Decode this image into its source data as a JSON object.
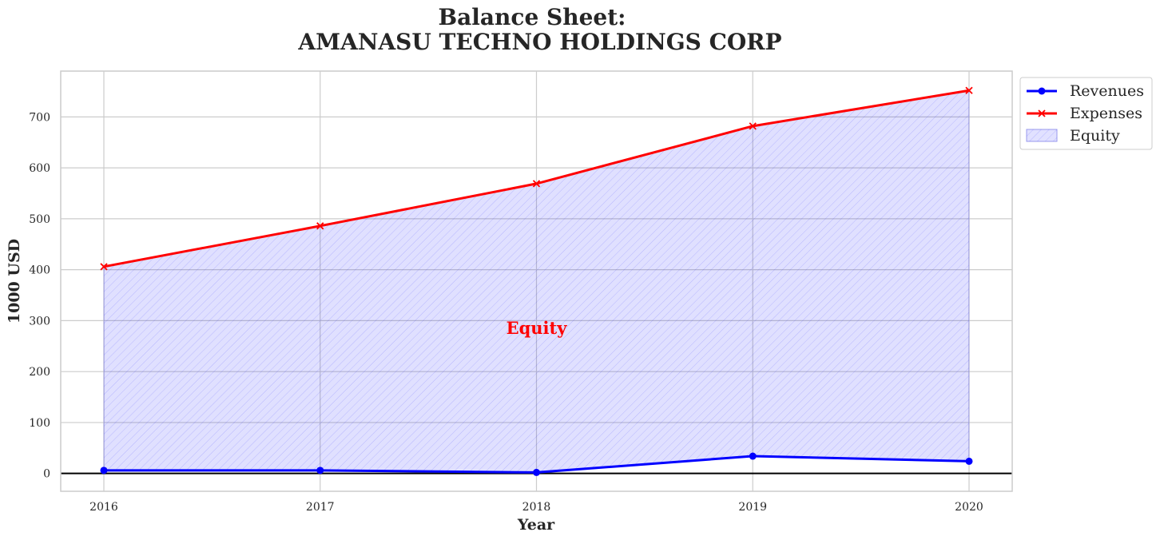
{
  "chart_data": {
    "type": "line",
    "title_lines": [
      "Balance Sheet:",
      "AMANASU TECHNO HOLDINGS CORP"
    ],
    "xlabel": "Year",
    "ylabel": "1000 USD",
    "categories": [
      "2016",
      "2017",
      "2018",
      "2019",
      "2020"
    ],
    "ylim": [
      -35,
      790
    ],
    "yticks": [
      0,
      100,
      200,
      300,
      400,
      500,
      600,
      700
    ],
    "grid": true,
    "legend_position": "outside-top-right",
    "series": [
      {
        "name": "Revenues",
        "values": [
          6,
          6,
          2,
          34,
          24
        ],
        "color": "#0000ff",
        "marker": "circle"
      },
      {
        "name": "Expenses",
        "values": [
          406,
          486,
          569,
          682,
          752
        ],
        "color": "#ff0000",
        "marker": "x"
      }
    ],
    "fill": {
      "name": "Equity",
      "between": [
        "Revenues",
        "Expenses"
      ],
      "color": "#0000ff",
      "hatch": "////"
    },
    "annotation": {
      "text": "Equity",
      "x": "2018",
      "y": 285,
      "color": "#ff0000"
    },
    "zero_line": true
  }
}
